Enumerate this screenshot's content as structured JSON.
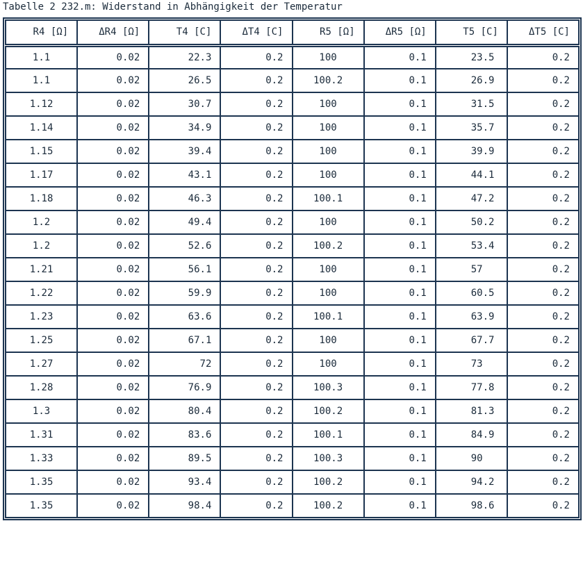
{
  "caption": "Tabelle 2 232.m: Widerstand in Abhängigkeit der Temperatur",
  "columns": [
    "R4 [Ω]",
    "ΔR4 [Ω]",
    "T4 [C]",
    "ΔT4 [C]",
    "R5 [Ω]",
    "ΔR5 [Ω]",
    "T5 [C]",
    "ΔT5 [C]"
  ],
  "rows": [
    [
      "1.1",
      "0.02",
      "22.3",
      "0.2",
      "100",
      "0.1",
      "23.5",
      "0.2"
    ],
    [
      "1.1",
      "0.02",
      "26.5",
      "0.2",
      "100.2",
      "0.1",
      "26.9",
      "0.2"
    ],
    [
      "1.12",
      "0.02",
      "30.7",
      "0.2",
      "100",
      "0.1",
      "31.5",
      "0.2"
    ],
    [
      "1.14",
      "0.02",
      "34.9",
      "0.2",
      "100",
      "0.1",
      "35.7",
      "0.2"
    ],
    [
      "1.15",
      "0.02",
      "39.4",
      "0.2",
      "100",
      "0.1",
      "39.9",
      "0.2"
    ],
    [
      "1.17",
      "0.02",
      "43.1",
      "0.2",
      "100",
      "0.1",
      "44.1",
      "0.2"
    ],
    [
      "1.18",
      "0.02",
      "46.3",
      "0.2",
      "100.1",
      "0.1",
      "47.2",
      "0.2"
    ],
    [
      "1.2",
      "0.02",
      "49.4",
      "0.2",
      "100",
      "0.1",
      "50.2",
      "0.2"
    ],
    [
      "1.2",
      "0.02",
      "52.6",
      "0.2",
      "100.2",
      "0.1",
      "53.4",
      "0.2"
    ],
    [
      "1.21",
      "0.02",
      "56.1",
      "0.2",
      "100",
      "0.1",
      "57",
      "0.2"
    ],
    [
      "1.22",
      "0.02",
      "59.9",
      "0.2",
      "100",
      "0.1",
      "60.5",
      "0.2"
    ],
    [
      "1.23",
      "0.02",
      "63.6",
      "0.2",
      "100.1",
      "0.1",
      "63.9",
      "0.2"
    ],
    [
      "1.25",
      "0.02",
      "67.1",
      "0.2",
      "100",
      "0.1",
      "67.7",
      "0.2"
    ],
    [
      "1.27",
      "0.02",
      "72",
      "0.2",
      "100",
      "0.1",
      "73",
      "0.2"
    ],
    [
      "1.28",
      "0.02",
      "76.9",
      "0.2",
      "100.3",
      "0.1",
      "77.8",
      "0.2"
    ],
    [
      "1.3",
      "0.02",
      "80.4",
      "0.2",
      "100.2",
      "0.1",
      "81.3",
      "0.2"
    ],
    [
      "1.31",
      "0.02",
      "83.6",
      "0.2",
      "100.1",
      "0.1",
      "84.9",
      "0.2"
    ],
    [
      "1.33",
      "0.02",
      "89.5",
      "0.2",
      "100.3",
      "0.1",
      "90",
      "0.2"
    ],
    [
      "1.35",
      "0.02",
      "93.4",
      "0.2",
      "100.2",
      "0.1",
      "94.2",
      "0.2"
    ],
    [
      "1.35",
      "0.02",
      "98.4",
      "0.2",
      "100.2",
      "0.1",
      "98.6",
      "0.2"
    ]
  ]
}
